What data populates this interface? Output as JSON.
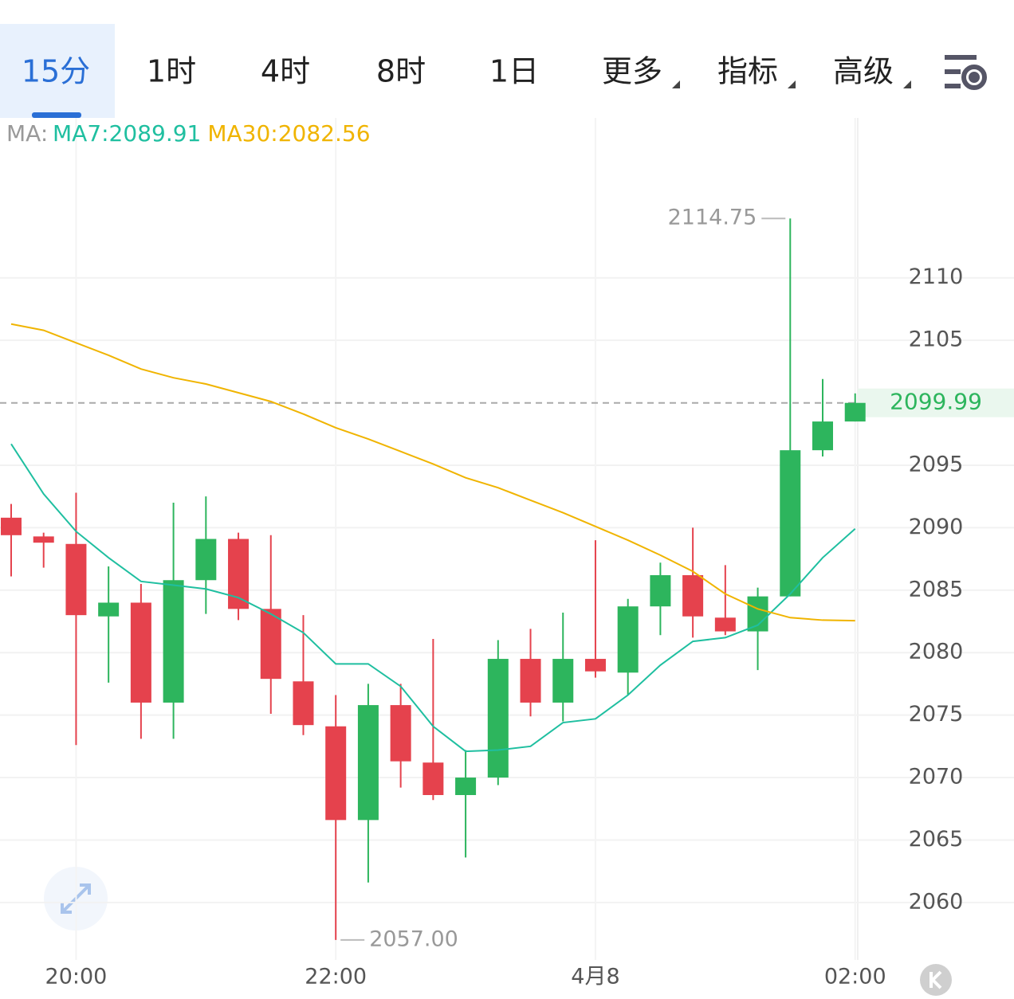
{
  "tabs": {
    "items": [
      "15分",
      "1时",
      "4时",
      "8时",
      "1日",
      "更多",
      "指标",
      "高级"
    ],
    "active": 0
  },
  "chart_data": {
    "type": "candlestick",
    "ma_label": "MA:",
    "categories": [
      null,
      null,
      "20:00",
      null,
      null,
      null,
      null,
      null,
      null,
      null,
      "22:00",
      null,
      null,
      null,
      null,
      null,
      null,
      null,
      "4月8",
      null,
      null,
      null,
      null,
      null,
      null,
      null,
      "02:00"
    ],
    "open": [
      2090.8,
      2089.3,
      2088.7,
      2082.9,
      2084.0,
      2076.0,
      2085.8,
      2089.1,
      2083.5,
      2077.7,
      2074.1,
      2066.6,
      2075.8,
      2071.2,
      2068.6,
      2070.0,
      2079.5,
      2076.0,
      2079.5,
      2078.4,
      2083.7,
      2086.2,
      2082.8,
      2081.7,
      2084.5,
      2096.2,
      2098.5
    ],
    "high": [
      2091.9,
      2089.6,
      2092.8,
      2086.9,
      2085.5,
      2092.0,
      2092.5,
      2089.6,
      2089.4,
      2083.0,
      2076.6,
      2077.5,
      2077.5,
      2081.1,
      2072.2,
      2081.0,
      2081.9,
      2083.2,
      2089.0,
      2084.3,
      2087.2,
      2090.0,
      2087.0,
      2085.2,
      2114.75,
      2101.9,
      2100.75
    ],
    "low": [
      2086.1,
      2086.8,
      2072.6,
      2077.6,
      2073.1,
      2073.1,
      2083.1,
      2082.6,
      2075.1,
      2073.4,
      2057.0,
      2061.6,
      2069.2,
      2068.2,
      2063.6,
      2069.4,
      2074.9,
      2074.5,
      2078.0,
      2076.6,
      2081.4,
      2081.2,
      2081.4,
      2078.6,
      2084.5,
      2095.7,
      2098.5
    ],
    "close": [
      2089.4,
      2088.8,
      2083.0,
      2084.0,
      2076.0,
      2085.8,
      2089.1,
      2083.5,
      2077.9,
      2074.2,
      2066.6,
      2075.8,
      2071.3,
      2068.6,
      2070.0,
      2079.5,
      2076.0,
      2079.5,
      2078.5,
      2083.7,
      2086.2,
      2082.9,
      2081.7,
      2084.5,
      2096.2,
      2098.5,
      2099.99
    ],
    "up_color": "#2db55d",
    "down_color": "#e5424d",
    "ma": [
      {
        "name": "MA7:2089.91",
        "color": "#1fbfa0",
        "values": [
          2096.7,
          2092.7,
          2089.7,
          2087.6,
          2085.7,
          2085.4,
          2085.1,
          2084.4,
          2083.1,
          2081.6,
          2079.1,
          2079.1,
          2077.3,
          2074.1,
          2072.1,
          2072.2,
          2072.5,
          2074.4,
          2074.7,
          2076.6,
          2079.0,
          2080.9,
          2081.2,
          2082.2,
          2084.7,
          2087.6,
          2089.91
        ]
      },
      {
        "name": "MA30:2082.56",
        "color": "#f0b400",
        "values": [
          2106.3,
          2105.8,
          2104.8,
          2103.8,
          2102.7,
          2102.0,
          2101.5,
          2100.8,
          2100.1,
          2099.1,
          2098.0,
          2097.1,
          2096.1,
          2095.1,
          2094.0,
          2093.2,
          2092.2,
          2091.2,
          2090.1,
          2089.0,
          2087.8,
          2086.5,
          2084.7,
          2083.5,
          2082.8,
          2082.6,
          2082.56
        ]
      }
    ],
    "ylim": [
      2055.4,
      2122.8
    ],
    "yticks": [
      2060,
      2065,
      2070,
      2075,
      2080,
      2085,
      2090,
      2095,
      2105,
      2110
    ],
    "grid": true,
    "last_price": {
      "value": 2099.99,
      "color": "#2db55d"
    },
    "high_annotation": {
      "value": 2114.75,
      "label": "2114.75"
    },
    "low_annotation": {
      "value": 2057,
      "label": "2057.00"
    }
  }
}
